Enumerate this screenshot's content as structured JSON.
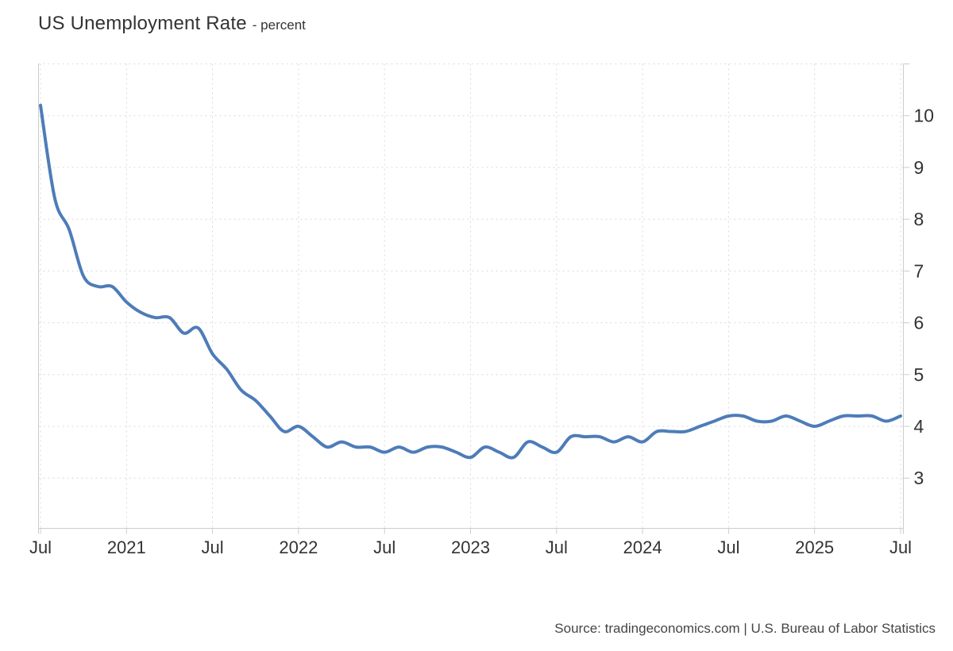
{
  "chart_data": {
    "type": "line",
    "title": "US Unemployment Rate",
    "subtitle": "- percent",
    "unit": "percent",
    "series_name": "US Unemployment Rate",
    "x": [
      "Jul 2020",
      "Aug 2020",
      "Sep 2020",
      "Oct 2020",
      "Nov 2020",
      "Dec 2020",
      "Jan 2021",
      "Feb 2021",
      "Mar 2021",
      "Apr 2021",
      "May 2021",
      "Jun 2021",
      "Jul 2021",
      "Aug 2021",
      "Sep 2021",
      "Oct 2021",
      "Nov 2021",
      "Dec 2021",
      "Jan 2022",
      "Feb 2022",
      "Mar 2022",
      "Apr 2022",
      "May 2022",
      "Jun 2022",
      "Jul 2022",
      "Aug 2022",
      "Sep 2022",
      "Oct 2022",
      "Nov 2022",
      "Dec 2022",
      "Jan 2023",
      "Feb 2023",
      "Mar 2023",
      "Apr 2023",
      "May 2023",
      "Jun 2023",
      "Jul 2023",
      "Aug 2023",
      "Sep 2023",
      "Oct 2023",
      "Nov 2023",
      "Dec 2023",
      "Jan 2024",
      "Feb 2024",
      "Mar 2024",
      "Apr 2024",
      "May 2024",
      "Jun 2024",
      "Jul 2024",
      "Aug 2024",
      "Sep 2024",
      "Oct 2024",
      "Nov 2024",
      "Dec 2024",
      "Jan 2025",
      "Feb 2025",
      "Mar 2025",
      "Apr 2025",
      "May 2025",
      "Jun 2025",
      "Jul 2025"
    ],
    "values": [
      10.2,
      8.4,
      7.8,
      6.9,
      6.7,
      6.7,
      6.4,
      6.2,
      6.1,
      6.1,
      5.8,
      5.9,
      5.4,
      5.1,
      4.7,
      4.5,
      4.2,
      3.9,
      4.0,
      3.8,
      3.6,
      3.7,
      3.6,
      3.6,
      3.5,
      3.6,
      3.5,
      3.6,
      3.6,
      3.5,
      3.4,
      3.6,
      3.5,
      3.4,
      3.7,
      3.6,
      3.5,
      3.8,
      3.8,
      3.8,
      3.7,
      3.8,
      3.7,
      3.9,
      3.9,
      3.9,
      4.0,
      4.1,
      4.2,
      4.2,
      4.1,
      4.1,
      4.2,
      4.1,
      4.0,
      4.1,
      4.2,
      4.2,
      4.2,
      4.1,
      4.2
    ],
    "x_tick_labels": [
      "Jul",
      "2021",
      "Jul",
      "2022",
      "Jul",
      "2023",
      "Jul",
      "2024",
      "Jul",
      "2025",
      "Jul"
    ],
    "x_tick_month_indices": [
      0,
      6,
      12,
      18,
      24,
      30,
      36,
      42,
      48,
      54,
      60
    ],
    "y_ticks": [
      3,
      4,
      5,
      6,
      7,
      8,
      9,
      10
    ],
    "ylim": [
      2.03,
      11.0
    ],
    "grid": true,
    "legend": "none",
    "line_color": "#4e7cb8",
    "grid_color": "#d9d9d9",
    "axis_color": "#cccccc",
    "label_color": "#333333"
  },
  "footer": {
    "source": "Source: tradingeconomics.com | U.S. Bureau of Labor Statistics"
  }
}
